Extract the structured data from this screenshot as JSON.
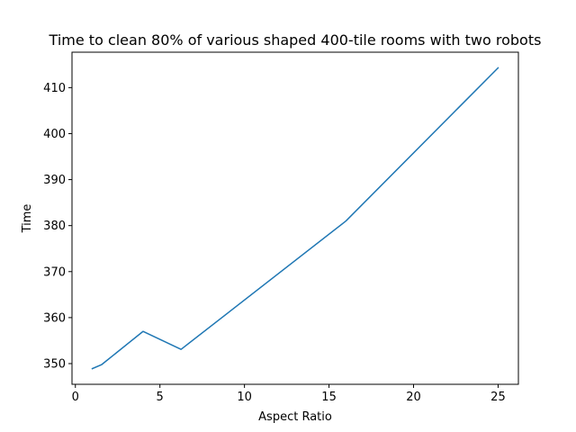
{
  "chart_data": {
    "type": "line",
    "title": "Time to clean 80% of various shaped 400-tile rooms with two robots",
    "xlabel": "Aspect Ratio",
    "ylabel": "Time",
    "xlim": [
      -0.2,
      26.2
    ],
    "ylim": [
      345.5,
      417.7
    ],
    "xticks": [
      0,
      5,
      10,
      15,
      20,
      25
    ],
    "yticks": [
      350,
      360,
      370,
      380,
      390,
      400,
      410
    ],
    "grid": false,
    "legend": "none",
    "series": [
      {
        "color": "#1f77b4",
        "x": [
          1.0,
          1.5625,
          4.0,
          6.25,
          16.0,
          25.0
        ],
        "y": [
          348.9,
          349.8,
          357.0,
          353.1,
          381.0,
          414.3
        ]
      }
    ]
  }
}
